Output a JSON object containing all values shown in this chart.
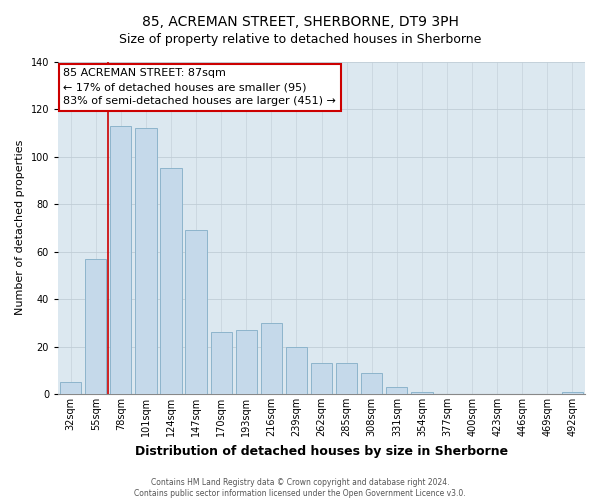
{
  "title": "85, ACREMAN STREET, SHERBORNE, DT9 3PH",
  "subtitle": "Size of property relative to detached houses in Sherborne",
  "xlabel": "Distribution of detached houses by size in Sherborne",
  "ylabel": "Number of detached properties",
  "bar_labels": [
    "32sqm",
    "55sqm",
    "78sqm",
    "101sqm",
    "124sqm",
    "147sqm",
    "170sqm",
    "193sqm",
    "216sqm",
    "239sqm",
    "262sqm",
    "285sqm",
    "308sqm",
    "331sqm",
    "354sqm",
    "377sqm",
    "400sqm",
    "423sqm",
    "446sqm",
    "469sqm",
    "492sqm"
  ],
  "bar_values": [
    5,
    57,
    113,
    112,
    95,
    69,
    26,
    27,
    30,
    20,
    13,
    13,
    9,
    3,
    1,
    0,
    0,
    0,
    0,
    0,
    1
  ],
  "bar_facecolor": "#c5d9ea",
  "bar_edgecolor": "#8db4cc",
  "vline_color": "#cc0000",
  "vline_position": 1.5,
  "ylim": [
    0,
    140
  ],
  "yticks": [
    0,
    20,
    40,
    60,
    80,
    100,
    120,
    140
  ],
  "annotation_title": "85 ACREMAN STREET: 87sqm",
  "annotation_line1": "← 17% of detached houses are smaller (95)",
  "annotation_line2": "83% of semi-detached houses are larger (451) →",
  "annotation_box_facecolor": "#ffffff",
  "annotation_box_edgecolor": "#cc0000",
  "footer_line1": "Contains HM Land Registry data © Crown copyright and database right 2024.",
  "footer_line2": "Contains public sector information licensed under the Open Government Licence v3.0.",
  "axes_facecolor": "#dce8f0",
  "fig_facecolor": "#ffffff",
  "grid_color": "#c0cdd6",
  "title_fontsize": 10,
  "subtitle_fontsize": 9,
  "ylabel_fontsize": 8,
  "xlabel_fontsize": 9,
  "tick_fontsize": 7,
  "annotation_fontsize": 8,
  "footer_fontsize": 5.5
}
